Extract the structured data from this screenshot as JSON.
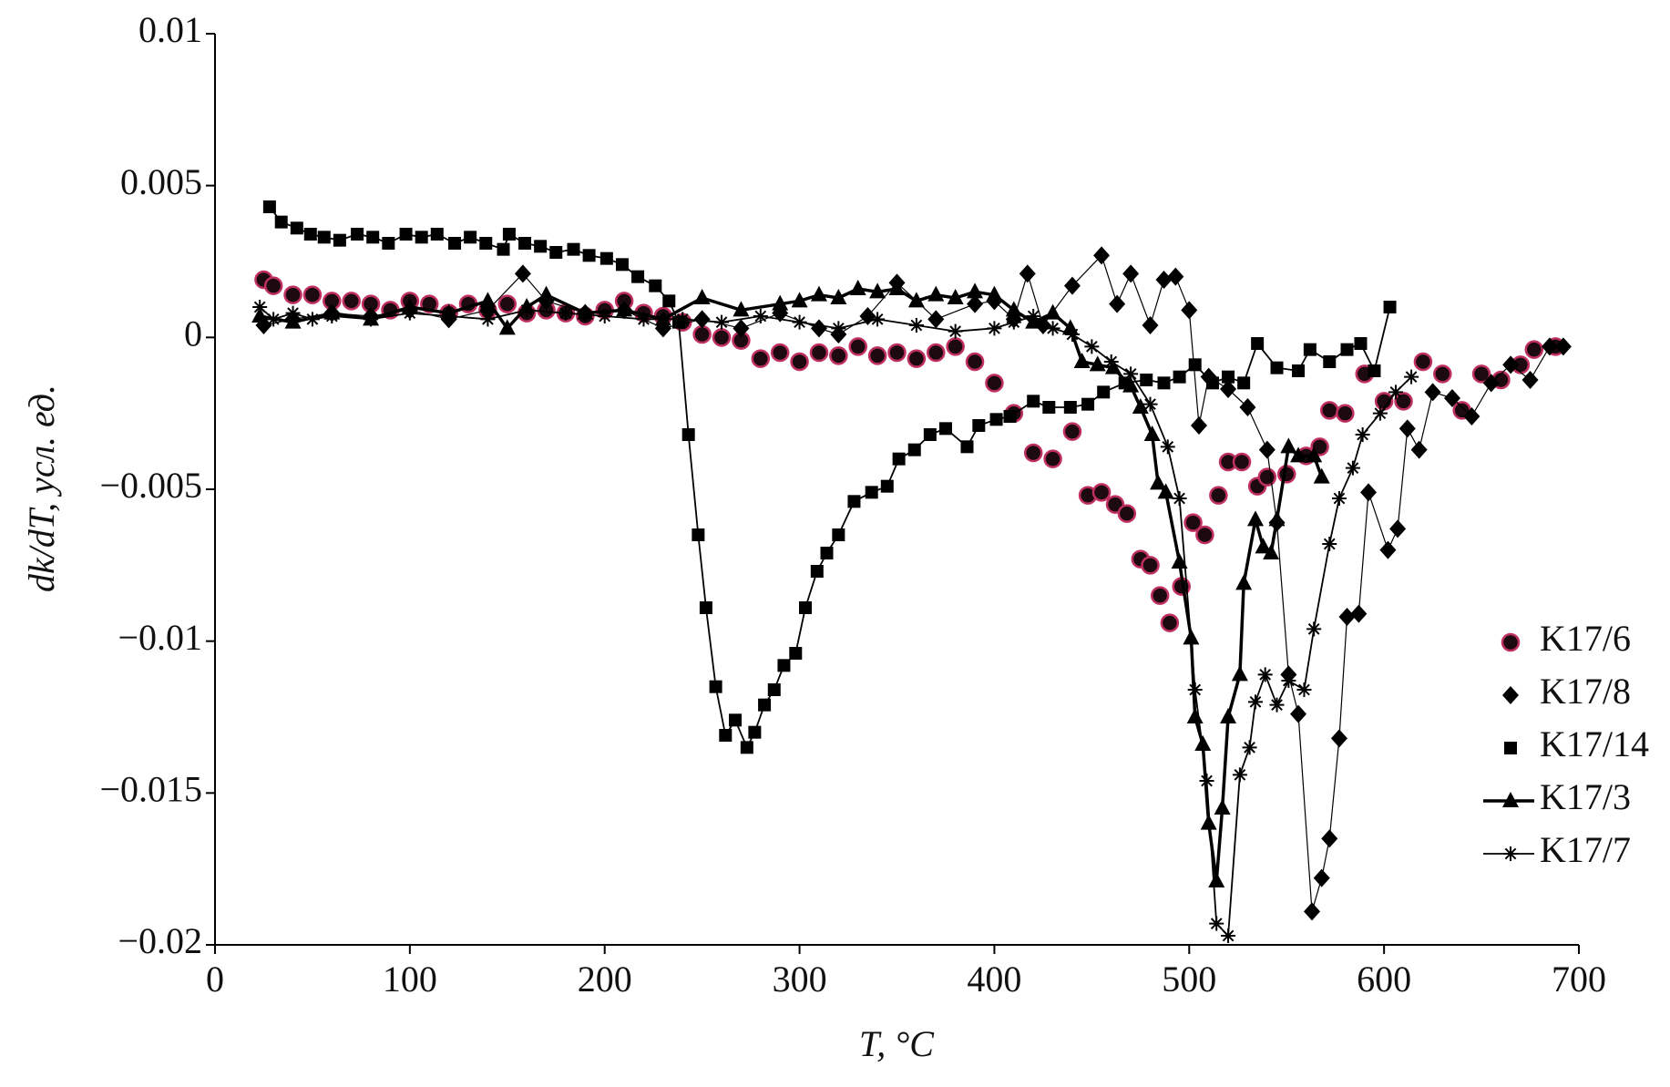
{
  "chart_data": {
    "type": "scatter",
    "xlabel": "T, °C",
    "ylabel": "dk/dT, усл. ед.",
    "xlim": [
      0,
      700
    ],
    "ylim": [
      -0.02,
      0.01
    ],
    "xticks": [
      0,
      100,
      200,
      300,
      400,
      500,
      600,
      700
    ],
    "yticks": [
      {
        "value": -0.02,
        "label": "−0.02"
      },
      {
        "value": -0.015,
        "label": "−0.015"
      },
      {
        "value": -0.01,
        "label": "−0.01"
      },
      {
        "value": -0.005,
        "label": "−0.005"
      },
      0,
      0.005,
      0.01
    ],
    "grid": false,
    "legend": "lower right",
    "series": [
      {
        "name": "K17/6",
        "marker": "circle",
        "color": "#1c0a10",
        "edge_color": "#c0305e",
        "line_width": 0,
        "legend_line": false,
        "x": [
          25,
          30,
          40,
          50,
          60,
          70,
          80,
          90,
          100,
          110,
          120,
          130,
          140,
          150,
          160,
          170,
          180,
          190,
          200,
          210,
          220,
          230,
          240,
          250,
          260,
          270,
          280,
          290,
          300,
          310,
          320,
          330,
          340,
          350,
          360,
          370,
          380,
          390,
          400,
          410,
          420,
          430,
          440,
          448,
          455,
          462,
          468,
          475,
          480,
          485,
          490,
          496,
          502,
          508,
          515,
          520,
          527,
          535,
          540,
          550,
          560,
          567,
          572,
          580,
          590,
          600,
          610,
          620,
          630,
          640,
          650,
          660,
          670,
          677,
          688
        ],
        "values": [
          0.0019,
          0.0017,
          0.0014,
          0.0014,
          0.0012,
          0.0012,
          0.0011,
          0.0009,
          0.0012,
          0.0011,
          0.0008,
          0.0011,
          0.0009,
          0.0011,
          0.0008,
          0.0009,
          0.0008,
          0.0007,
          0.0009,
          0.0012,
          0.0008,
          0.0007,
          0.0005,
          0.0001,
          0,
          -0.0001,
          -0.0007,
          -0.0005,
          -0.0008,
          -0.0005,
          -0.0006,
          -0.0003,
          -0.0006,
          -0.0005,
          -0.0007,
          -0.0005,
          -0.0003,
          -0.0008,
          -0.0015,
          -0.0025,
          -0.0038,
          -0.004,
          -0.0031,
          -0.0052,
          -0.0051,
          -0.0055,
          -0.0058,
          -0.0073,
          -0.0075,
          -0.0085,
          -0.0094,
          -0.0082,
          -0.0061,
          -0.0065,
          -0.0052,
          -0.0041,
          -0.0041,
          -0.0049,
          -0.0046,
          -0.0045,
          -0.0039,
          -0.0036,
          -0.0024,
          -0.0025,
          -0.0012,
          -0.0021,
          -0.0021,
          -0.0008,
          -0.0012,
          -0.0024,
          -0.0012,
          -0.0014,
          -0.0009,
          -0.0004,
          -0.0003
        ]
      },
      {
        "name": "K17/8",
        "marker": "diamond",
        "color": "#000000",
        "line_width": 1.2,
        "legend_line": false,
        "x": [
          25,
          40,
          60,
          80,
          100,
          120,
          140,
          158,
          170,
          190,
          210,
          230,
          250,
          270,
          290,
          310,
          320,
          335,
          350,
          370,
          390,
          400,
          410,
          417,
          425,
          440,
          455,
          463,
          470,
          480,
          487,
          493,
          500,
          505,
          510,
          520,
          530,
          540,
          545,
          551,
          556,
          563,
          568,
          572,
          577,
          581,
          587,
          592,
          602,
          607,
          612,
          618,
          625,
          635,
          645,
          655,
          665,
          675,
          685,
          692
        ],
        "values": [
          0.0004,
          0.0006,
          0.0008,
          0.0007,
          0.0009,
          0.0006,
          0.0009,
          0.0021,
          0.0012,
          0.0008,
          0.0009,
          0.0003,
          0.0006,
          0.0003,
          0.0008,
          0.0003,
          0.0001,
          0.0007,
          0.0018,
          0.0006,
          0.0011,
          0.0012,
          0.0006,
          0.0021,
          0.0004,
          0.0017,
          0.0027,
          0.0011,
          0.0021,
          0.0004,
          0.0019,
          0.002,
          0.0009,
          -0.0029,
          -0.0013,
          -0.0017,
          -0.0023,
          -0.0037,
          -0.0061,
          -0.0111,
          -0.0124,
          -0.0189,
          -0.0178,
          -0.0165,
          -0.0132,
          -0.0092,
          -0.0091,
          -0.0051,
          -0.007,
          -0.0063,
          -0.003,
          -0.0037,
          -0.0018,
          -0.002,
          -0.0026,
          -0.0015,
          -0.0009,
          -0.0014,
          -0.0003,
          -0.0003
        ]
      },
      {
        "name": "K17/14",
        "marker": "square",
        "color": "#000000",
        "line_width": 1.8,
        "legend_line": false,
        "x": [
          28,
          34,
          42,
          49,
          56,
          64,
          73,
          81,
          89,
          98,
          106,
          114,
          123,
          131,
          139,
          148,
          151,
          159,
          167,
          175,
          184,
          192,
          201,
          209,
          217,
          226,
          233,
          238,
          243,
          248,
          252,
          257,
          262,
          267,
          273,
          277,
          282,
          287,
          292,
          298,
          303,
          309,
          314,
          320,
          328,
          337,
          345,
          351,
          359,
          367,
          375,
          386,
          392,
          401,
          408,
          420,
          428,
          439,
          448,
          456,
          467,
          478,
          487,
          495,
          503,
          512,
          520,
          528,
          535,
          545,
          556,
          562,
          572,
          581,
          588,
          595,
          603
        ],
        "values": [
          0.0043,
          0.0038,
          0.0036,
          0.0034,
          0.0033,
          0.0032,
          0.0034,
          0.0033,
          0.0031,
          0.0034,
          0.0033,
          0.0034,
          0.0031,
          0.0033,
          0.0031,
          0.0029,
          0.0034,
          0.0031,
          0.003,
          0.0028,
          0.0029,
          0.0027,
          0.0026,
          0.0024,
          0.002,
          0.0017,
          0.0012,
          0.0005,
          -0.0032,
          -0.0065,
          -0.0089,
          -0.0115,
          -0.0131,
          -0.0126,
          -0.0135,
          -0.013,
          -0.0121,
          -0.0116,
          -0.0108,
          -0.0104,
          -0.0089,
          -0.0077,
          -0.0071,
          -0.0065,
          -0.0054,
          -0.0051,
          -0.0049,
          -0.004,
          -0.0037,
          -0.0032,
          -0.003,
          -0.0036,
          -0.0029,
          -0.0027,
          -0.0026,
          -0.0021,
          -0.0023,
          -0.0023,
          -0.0022,
          -0.0018,
          -0.0015,
          -0.0014,
          -0.0015,
          -0.0013,
          -0.0009,
          -0.0015,
          -0.0013,
          -0.0015,
          -0.0002,
          -0.001,
          -0.0011,
          -0.0004,
          -0.0008,
          -0.0004,
          -0.0002,
          -0.0011,
          0.001
        ]
      },
      {
        "name": "K17/3",
        "marker": "triangle",
        "color": "#000000",
        "line_width": 3.5,
        "legend_line": true,
        "x": [
          23,
          40,
          60,
          80,
          100,
          120,
          140,
          150,
          160,
          170,
          190,
          210,
          230,
          250,
          270,
          290,
          300,
          310,
          320,
          330,
          340,
          350,
          360,
          370,
          380,
          390,
          400,
          410,
          420,
          430,
          439,
          445,
          453,
          461,
          470,
          475,
          481,
          484,
          488,
          495,
          501,
          503,
          507,
          510,
          514,
          517,
          520,
          526,
          528,
          534,
          538,
          542,
          545,
          551,
          556,
          564,
          568
        ],
        "values": [
          0.0007,
          0.0005,
          0.0008,
          0.0006,
          0.001,
          0.0008,
          0.0012,
          0.0003,
          0.001,
          0.0014,
          0.0008,
          0.0009,
          0.0006,
          0.0013,
          0.0009,
          0.0011,
          0.0012,
          0.0014,
          0.0013,
          0.0016,
          0.0015,
          0.0016,
          0.0012,
          0.0014,
          0.0013,
          0.0015,
          0.0014,
          0.0009,
          0.0005,
          0.0008,
          0.0003,
          -0.0008,
          -0.0009,
          -0.001,
          -0.0016,
          -0.0023,
          -0.0032,
          -0.0048,
          -0.0051,
          -0.0074,
          -0.0099,
          -0.0125,
          -0.0134,
          -0.016,
          -0.0179,
          -0.0155,
          -0.0125,
          -0.0111,
          -0.0081,
          -0.006,
          -0.0069,
          -0.0071,
          -0.006,
          -0.0036,
          -0.0039,
          -0.0039,
          -0.0046
        ]
      },
      {
        "name": "K17/7",
        "marker": "asterisk",
        "color": "#000000",
        "line_width": 1.8,
        "legend_line": true,
        "x": [
          23,
          30,
          40,
          50,
          60,
          80,
          100,
          120,
          140,
          160,
          180,
          200,
          220,
          240,
          260,
          280,
          300,
          320,
          340,
          360,
          380,
          400,
          410,
          420,
          430,
          440,
          450,
          460,
          470,
          480,
          489,
          495,
          503,
          509,
          514,
          520,
          526,
          531,
          534,
          539,
          545,
          551,
          559,
          564,
          572,
          577,
          584,
          589,
          598,
          606,
          614
        ],
        "values": [
          0.001,
          0.0006,
          0.0008,
          0.0006,
          0.0007,
          0.0006,
          0.0008,
          0.0007,
          0.0006,
          0.0009,
          0.0008,
          0.0007,
          0.0006,
          0.0006,
          0.0005,
          0.0007,
          0.0005,
          0.0003,
          0.0006,
          0.0004,
          0.0002,
          0.0003,
          0.0005,
          0.0007,
          0.0003,
          0.0001,
          -0.0003,
          -0.0008,
          -0.0012,
          -0.0022,
          -0.0036,
          -0.0053,
          -0.0116,
          -0.0146,
          -0.0193,
          -0.0197,
          -0.0144,
          -0.0135,
          -0.012,
          -0.0111,
          -0.0121,
          -0.0113,
          -0.0116,
          -0.0096,
          -0.0068,
          -0.0053,
          -0.0043,
          -0.0032,
          -0.0025,
          -0.0018,
          -0.0013
        ]
      }
    ]
  }
}
